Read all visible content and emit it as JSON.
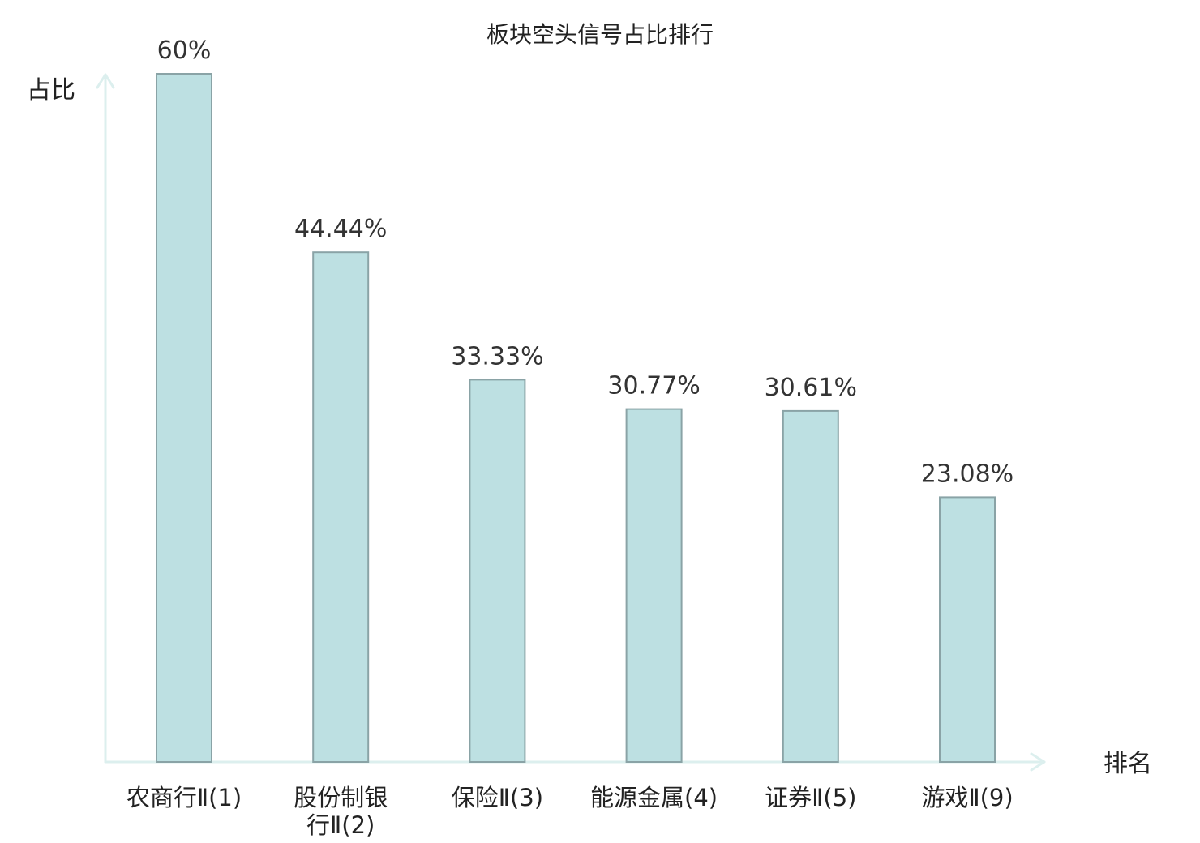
{
  "chart_data": {
    "type": "bar",
    "title": "板块空头信号占比排行",
    "ylabel": "占比",
    "xlabel": "排名",
    "ylim": [
      0,
      60
    ],
    "grid": false,
    "categories": [
      [
        "农商行Ⅱ(1)"
      ],
      [
        "股份制银",
        "行Ⅱ(2)"
      ],
      [
        "保险Ⅱ(3)"
      ],
      [
        "能源金属(4)"
      ],
      [
        "证券Ⅱ(5)"
      ],
      [
        "游戏Ⅱ(9)"
      ]
    ],
    "values": [
      60,
      44.44,
      33.33,
      30.77,
      30.61,
      23.08
    ],
    "value_labels": [
      "60%",
      "44.44%",
      "33.33%",
      "30.77%",
      "30.61%",
      "23.08%"
    ],
    "highlighted_category_index": 5,
    "colors": {
      "bar_fill": "#bde0e2",
      "bar_stroke": "#8aa3a6",
      "axis": "#dcefee",
      "text": "#222222",
      "value_text": "#333333",
      "highlight_text": "#d42020"
    }
  }
}
